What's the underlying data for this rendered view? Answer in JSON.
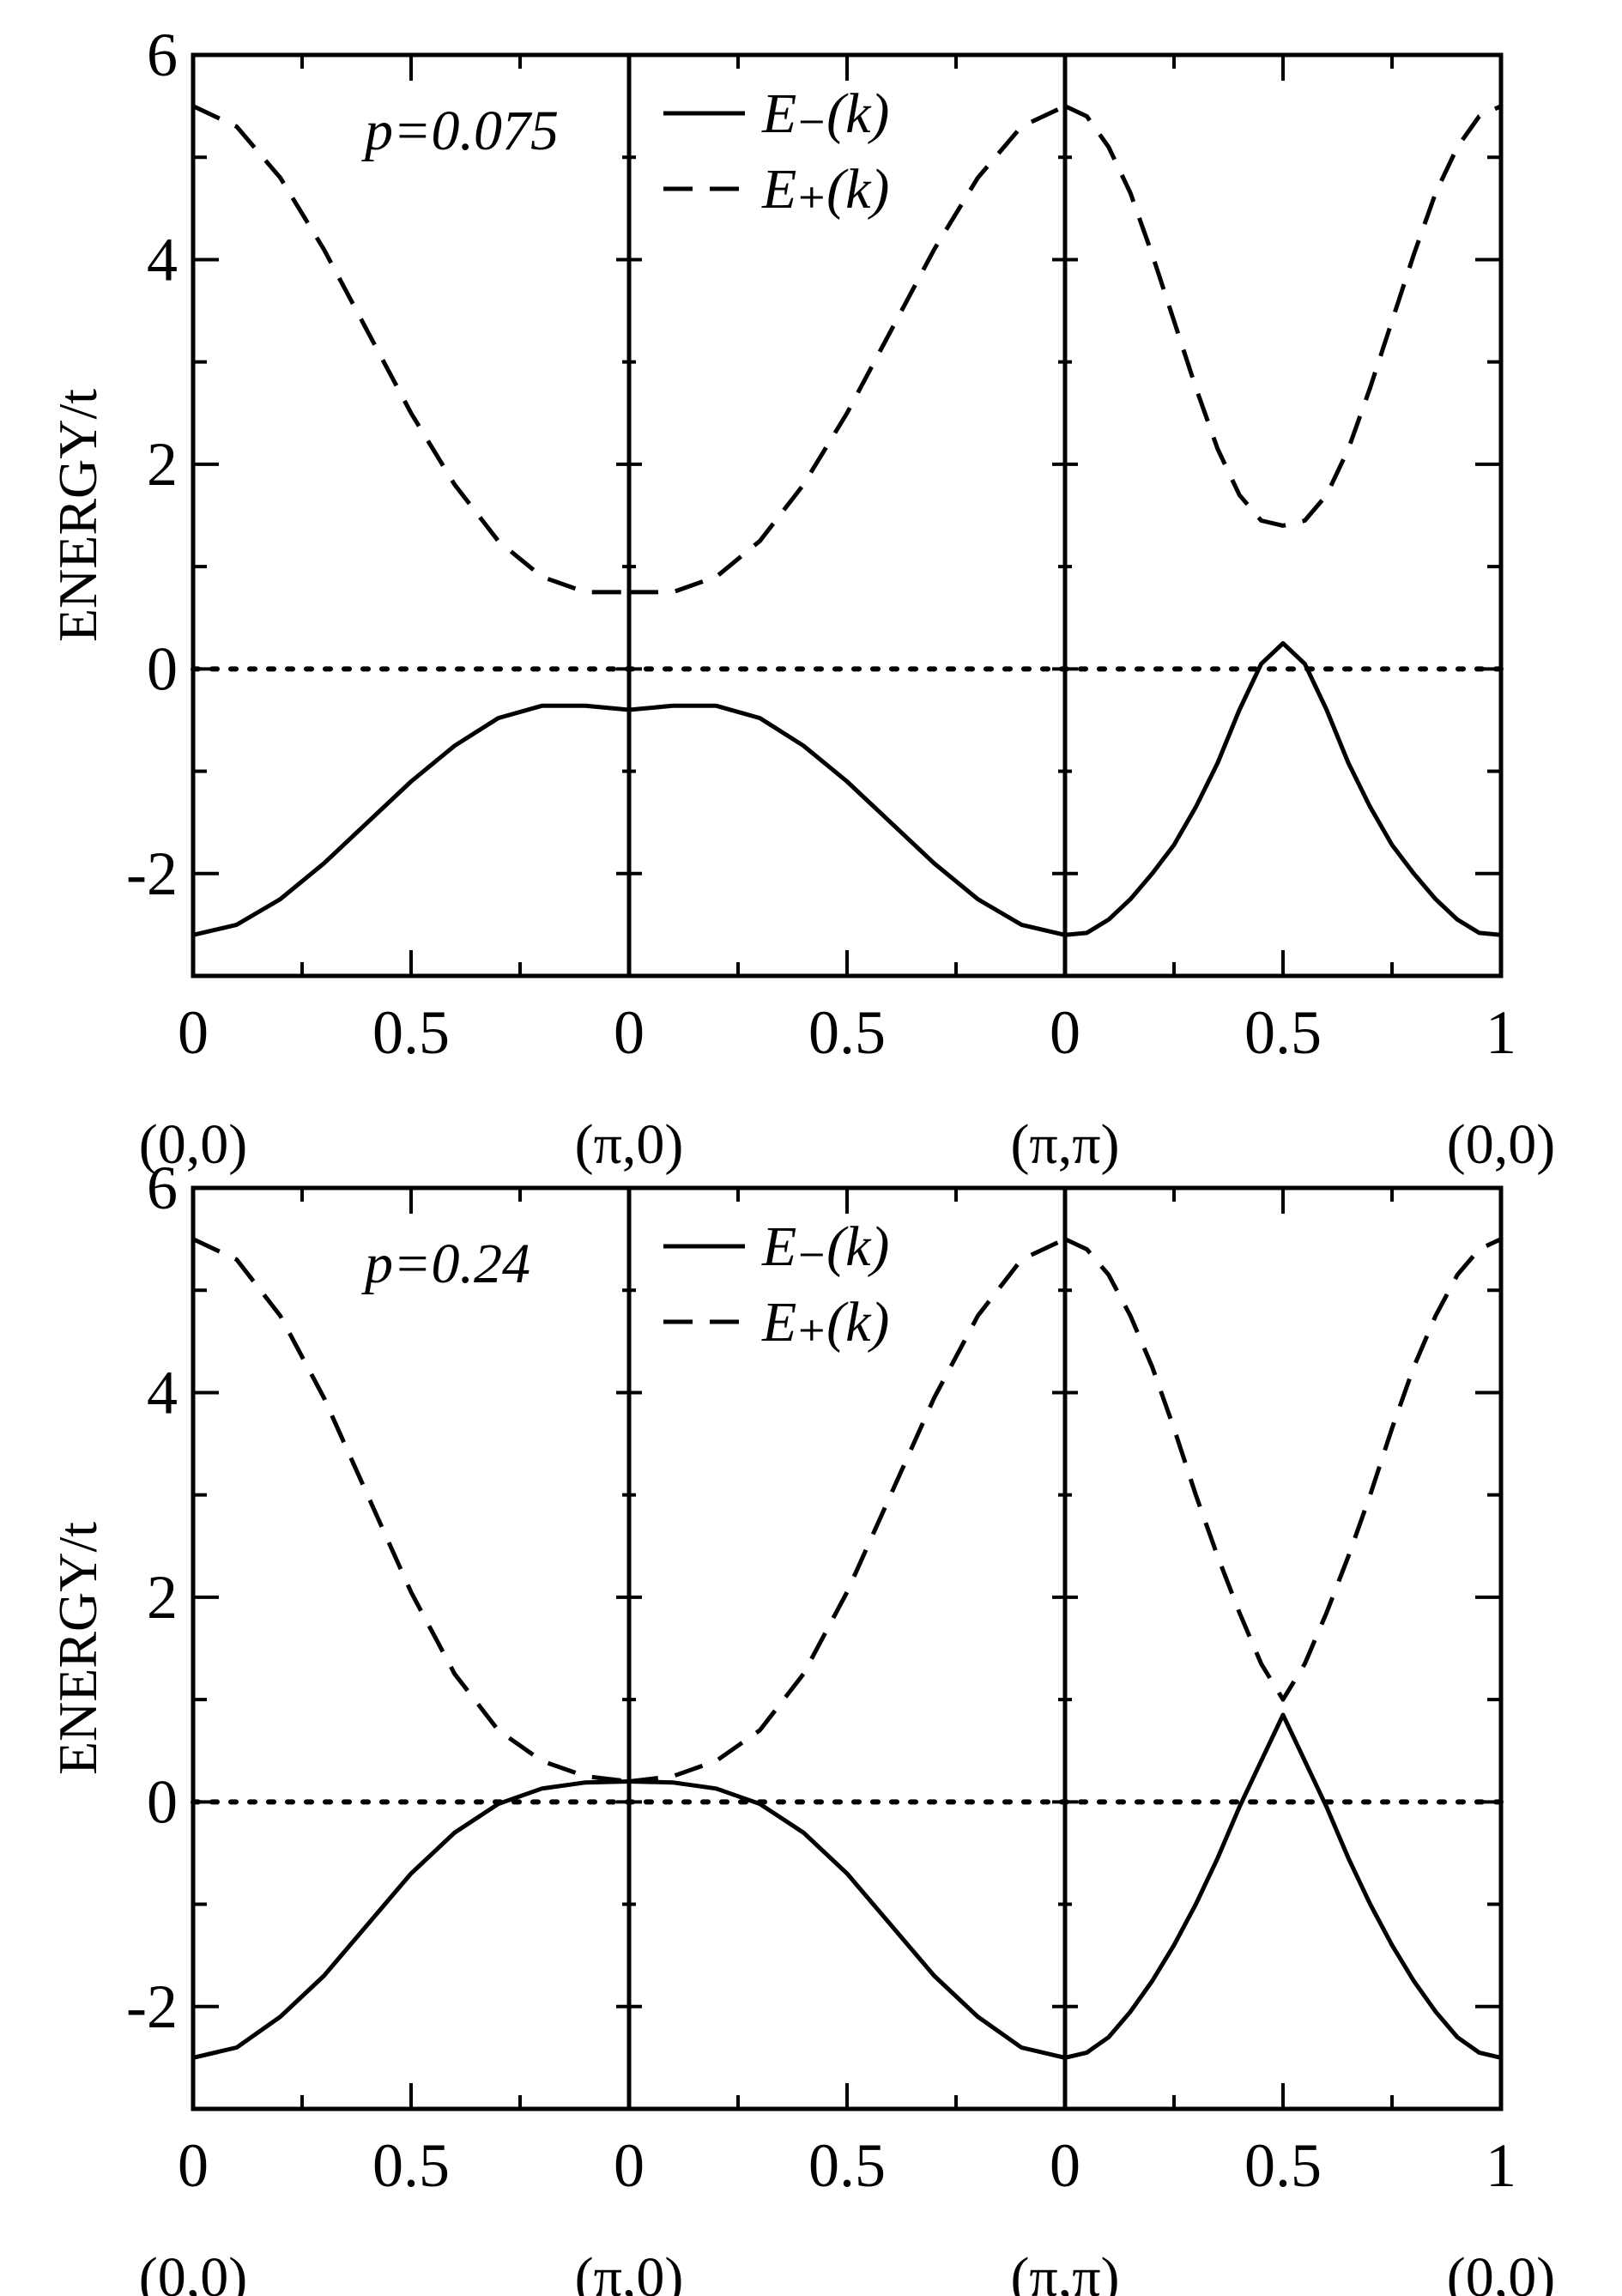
{
  "chart_data": [
    {
      "type": "line",
      "annotation": "p=0.075",
      "ylabel": "ENERGY/t",
      "ylim": [
        -3,
        6
      ],
      "yticks": [
        "-2",
        "0",
        "2",
        "4",
        "6"
      ],
      "segments": [
        {
          "xlim": [
            0,
            1
          ],
          "tick_labels": [
            "0",
            "0.5"
          ],
          "start_point": "(0,0)"
        },
        {
          "xlim": [
            0,
            1
          ],
          "tick_labels": [
            "0",
            "0.5"
          ],
          "start_point": "(π,0)"
        },
        {
          "xlim": [
            0,
            1
          ],
          "tick_labels": [
            "0",
            "0.5",
            "1"
          ],
          "start_point": "(π,π)",
          "end_point": "(0,0)"
        }
      ],
      "legend": [
        {
          "label": "E₋(k)",
          "style": "solid"
        },
        {
          "label": "E₊(k)",
          "style": "dashed"
        }
      ],
      "reference_line": {
        "y": 0,
        "style": "dotted"
      },
      "series": [
        {
          "name": "E₋(k)",
          "style": "solid",
          "segments": [
            {
              "x": [
                0,
                0.1,
                0.2,
                0.3,
                0.4,
                0.5,
                0.6,
                0.7,
                0.8,
                0.9,
                1.0
              ],
              "y": [
                -2.6,
                -2.5,
                -2.25,
                -1.9,
                -1.5,
                -1.1,
                -0.75,
                -0.48,
                -0.36,
                -0.36,
                -0.4
              ]
            },
            {
              "x": [
                0,
                0.1,
                0.2,
                0.3,
                0.4,
                0.5,
                0.6,
                0.7,
                0.8,
                0.9,
                1.0
              ],
              "y": [
                -0.4,
                -0.36,
                -0.36,
                -0.48,
                -0.75,
                -1.1,
                -1.5,
                -1.9,
                -2.25,
                -2.5,
                -2.6
              ]
            },
            {
              "x": [
                0,
                0.05,
                0.1,
                0.15,
                0.2,
                0.25,
                0.3,
                0.35,
                0.4,
                0.45,
                0.5,
                0.55,
                0.6,
                0.65,
                0.7,
                0.75,
                0.8,
                0.85,
                0.9,
                0.95,
                1.0
              ],
              "y": [
                -2.6,
                -2.58,
                -2.45,
                -2.25,
                -2.0,
                -1.72,
                -1.35,
                -0.92,
                -0.4,
                0.05,
                0.25,
                0.05,
                -0.4,
                -0.92,
                -1.35,
                -1.72,
                -2.0,
                -2.25,
                -2.45,
                -2.58,
                -2.6
              ]
            }
          ]
        },
        {
          "name": "E₊(k)",
          "style": "dashed",
          "segments": [
            {
              "x": [
                0,
                0.1,
                0.2,
                0.3,
                0.4,
                0.5,
                0.6,
                0.7,
                0.8,
                0.9,
                1.0
              ],
              "y": [
                5.5,
                5.3,
                4.8,
                4.1,
                3.3,
                2.5,
                1.8,
                1.25,
                0.9,
                0.75,
                0.75
              ]
            },
            {
              "x": [
                0,
                0.1,
                0.2,
                0.3,
                0.4,
                0.5,
                0.6,
                0.7,
                0.8,
                0.9,
                1.0
              ],
              "y": [
                0.75,
                0.75,
                0.9,
                1.25,
                1.8,
                2.5,
                3.3,
                4.1,
                4.8,
                5.3,
                5.5
              ]
            },
            {
              "x": [
                0,
                0.05,
                0.1,
                0.15,
                0.2,
                0.25,
                0.3,
                0.35,
                0.4,
                0.45,
                0.5,
                0.55,
                0.6,
                0.65,
                0.7,
                0.75,
                0.8,
                0.85,
                0.9,
                0.95,
                1.0
              ],
              "y": [
                5.5,
                5.4,
                5.1,
                4.65,
                4.05,
                3.4,
                2.75,
                2.15,
                1.7,
                1.45,
                1.4,
                1.45,
                1.7,
                2.15,
                2.75,
                3.4,
                4.05,
                4.65,
                5.1,
                5.4,
                5.5
              ]
            }
          ]
        }
      ]
    },
    {
      "type": "line",
      "annotation": "p=0.24",
      "ylabel": "ENERGY/t",
      "ylim": [
        -3,
        6
      ],
      "yticks": [
        "-2",
        "0",
        "2",
        "4",
        "6"
      ],
      "segments": [
        {
          "xlim": [
            0,
            1
          ],
          "tick_labels": [
            "0",
            "0.5"
          ],
          "start_point": "(0,0)"
        },
        {
          "xlim": [
            0,
            1
          ],
          "tick_labels": [
            "0",
            "0.5"
          ],
          "start_point": "(π,0)"
        },
        {
          "xlim": [
            0,
            1
          ],
          "tick_labels": [
            "0",
            "0.5",
            "1"
          ],
          "start_point": "(π,π)",
          "end_point": "(0,0)"
        }
      ],
      "legend": [
        {
          "label": "E₋(k)",
          "style": "solid"
        },
        {
          "label": "E₊(k)",
          "style": "dashed"
        }
      ],
      "reference_line": {
        "y": 0,
        "style": "dotted"
      },
      "series": [
        {
          "name": "E₋(k)",
          "style": "solid",
          "segments": [
            {
              "x": [
                0,
                0.1,
                0.2,
                0.3,
                0.4,
                0.5,
                0.6,
                0.7,
                0.8,
                0.9,
                1.0
              ],
              "y": [
                -2.5,
                -2.4,
                -2.1,
                -1.7,
                -1.2,
                -0.7,
                -0.3,
                -0.02,
                0.13,
                0.19,
                0.2
              ]
            },
            {
              "x": [
                0,
                0.1,
                0.2,
                0.3,
                0.4,
                0.5,
                0.6,
                0.7,
                0.8,
                0.9,
                1.0
              ],
              "y": [
                0.2,
                0.19,
                0.13,
                -0.02,
                -0.3,
                -0.7,
                -1.2,
                -1.7,
                -2.1,
                -2.4,
                -2.5
              ]
            },
            {
              "x": [
                0,
                0.05,
                0.1,
                0.15,
                0.2,
                0.25,
                0.3,
                0.35,
                0.4,
                0.45,
                0.5,
                0.55,
                0.6,
                0.65,
                0.7,
                0.75,
                0.8,
                0.85,
                0.9,
                0.95,
                1.0
              ],
              "y": [
                -2.5,
                -2.45,
                -2.3,
                -2.05,
                -1.75,
                -1.4,
                -1.0,
                -0.55,
                -0.05,
                0.4,
                0.85,
                0.4,
                -0.05,
                -0.55,
                -1.0,
                -1.4,
                -1.75,
                -2.05,
                -2.3,
                -2.45,
                -2.5
              ]
            }
          ]
        },
        {
          "name": "E₊(k)",
          "style": "dashed",
          "segments": [
            {
              "x": [
                0,
                0.1,
                0.2,
                0.3,
                0.4,
                0.5,
                0.6,
                0.7,
                0.8,
                0.9,
                1.0
              ],
              "y": [
                5.5,
                5.3,
                4.75,
                3.95,
                3.0,
                2.05,
                1.25,
                0.7,
                0.4,
                0.25,
                0.2
              ]
            },
            {
              "x": [
                0,
                0.1,
                0.2,
                0.3,
                0.4,
                0.5,
                0.6,
                0.7,
                0.8,
                0.9,
                1.0
              ],
              "y": [
                0.2,
                0.25,
                0.4,
                0.7,
                1.25,
                2.05,
                3.0,
                3.95,
                4.75,
                5.3,
                5.5
              ]
            },
            {
              "x": [
                0,
                0.05,
                0.1,
                0.15,
                0.2,
                0.25,
                0.3,
                0.35,
                0.4,
                0.45,
                0.5,
                0.55,
                0.6,
                0.65,
                0.7,
                0.75,
                0.8,
                0.85,
                0.9,
                0.95,
                1.0
              ],
              "y": [
                5.5,
                5.4,
                5.15,
                4.75,
                4.25,
                3.65,
                3.0,
                2.4,
                1.85,
                1.35,
                1.0,
                1.35,
                1.85,
                2.4,
                3.0,
                3.65,
                4.25,
                4.75,
                5.15,
                5.4,
                5.5
              ]
            }
          ]
        }
      ]
    }
  ]
}
